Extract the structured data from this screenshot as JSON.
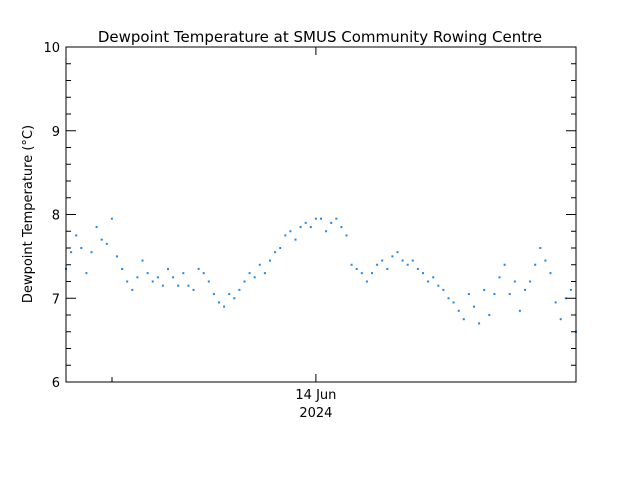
{
  "chart_data": {
    "type": "scatter",
    "title": "Dewpoint Temperature at SMUS Community Rowing Centre",
    "xlabel": "",
    "ylabel": "Dewpoint Temperature (°C)",
    "xlim": [
      0,
      1
    ],
    "ylim": [
      6,
      10
    ],
    "y_ticks": [
      {
        "label": "6",
        "value": 6
      },
      {
        "label": "7",
        "value": 7
      },
      {
        "label": "8",
        "value": 8
      },
      {
        "label": "9",
        "value": 9
      },
      {
        "label": "10",
        "value": 10
      }
    ],
    "x_ticks": [
      {
        "label": "14 Jun",
        "sublabel": "2024",
        "value": 0.49
      }
    ],
    "grid": false,
    "marker_color": "#1e88e5",
    "series": [
      {
        "name": "Dewpoint Temperature",
        "points": [
          [
            0.0,
            7.35
          ],
          [
            0.01,
            7.55
          ],
          [
            0.02,
            7.75
          ],
          [
            0.03,
            7.6
          ],
          [
            0.04,
            7.3
          ],
          [
            0.05,
            7.55
          ],
          [
            0.06,
            7.85
          ],
          [
            0.07,
            7.7
          ],
          [
            0.08,
            7.65
          ],
          [
            0.09,
            7.95
          ],
          [
            0.1,
            7.5
          ],
          [
            0.11,
            7.35
          ],
          [
            0.12,
            7.2
          ],
          [
            0.13,
            7.1
          ],
          [
            0.14,
            7.25
          ],
          [
            0.15,
            7.45
          ],
          [
            0.16,
            7.3
          ],
          [
            0.17,
            7.2
          ],
          [
            0.18,
            7.25
          ],
          [
            0.19,
            7.15
          ],
          [
            0.2,
            7.35
          ],
          [
            0.21,
            7.25
          ],
          [
            0.22,
            7.15
          ],
          [
            0.23,
            7.3
          ],
          [
            0.24,
            7.15
          ],
          [
            0.25,
            7.1
          ],
          [
            0.26,
            7.35
          ],
          [
            0.27,
            7.3
          ],
          [
            0.28,
            7.2
          ],
          [
            0.29,
            7.05
          ],
          [
            0.3,
            6.95
          ],
          [
            0.31,
            6.9
          ],
          [
            0.32,
            7.05
          ],
          [
            0.33,
            7.0
          ],
          [
            0.34,
            7.1
          ],
          [
            0.35,
            7.2
          ],
          [
            0.36,
            7.3
          ],
          [
            0.37,
            7.25
          ],
          [
            0.38,
            7.4
          ],
          [
            0.39,
            7.3
          ],
          [
            0.4,
            7.45
          ],
          [
            0.41,
            7.55
          ],
          [
            0.42,
            7.6
          ],
          [
            0.43,
            7.75
          ],
          [
            0.44,
            7.8
          ],
          [
            0.45,
            7.7
          ],
          [
            0.46,
            7.85
          ],
          [
            0.47,
            7.9
          ],
          [
            0.48,
            7.85
          ],
          [
            0.49,
            7.95
          ],
          [
            0.5,
            7.95
          ],
          [
            0.51,
            7.8
          ],
          [
            0.52,
            7.9
          ],
          [
            0.53,
            7.95
          ],
          [
            0.54,
            7.85
          ],
          [
            0.55,
            7.75
          ],
          [
            0.56,
            7.4
          ],
          [
            0.57,
            7.35
          ],
          [
            0.58,
            7.3
          ],
          [
            0.59,
            7.2
          ],
          [
            0.6,
            7.3
          ],
          [
            0.61,
            7.4
          ],
          [
            0.62,
            7.45
          ],
          [
            0.63,
            7.35
          ],
          [
            0.64,
            7.5
          ],
          [
            0.65,
            7.55
          ],
          [
            0.66,
            7.45
          ],
          [
            0.67,
            7.4
          ],
          [
            0.68,
            7.45
          ],
          [
            0.69,
            7.35
          ],
          [
            0.7,
            7.3
          ],
          [
            0.71,
            7.2
          ],
          [
            0.72,
            7.25
          ],
          [
            0.73,
            7.15
          ],
          [
            0.74,
            7.1
          ],
          [
            0.75,
            7.0
          ],
          [
            0.76,
            6.95
          ],
          [
            0.77,
            6.85
          ],
          [
            0.78,
            6.75
          ],
          [
            0.79,
            7.05
          ],
          [
            0.8,
            6.9
          ],
          [
            0.81,
            6.7
          ],
          [
            0.82,
            7.1
          ],
          [
            0.83,
            6.8
          ],
          [
            0.84,
            7.05
          ],
          [
            0.85,
            7.25
          ],
          [
            0.86,
            7.4
          ],
          [
            0.87,
            7.05
          ],
          [
            0.88,
            7.2
          ],
          [
            0.89,
            6.85
          ],
          [
            0.9,
            7.1
          ],
          [
            0.91,
            7.2
          ],
          [
            0.92,
            7.4
          ],
          [
            0.93,
            7.6
          ],
          [
            0.94,
            7.45
          ],
          [
            0.95,
            7.3
          ],
          [
            0.96,
            6.95
          ],
          [
            0.97,
            6.75
          ],
          [
            0.98,
            7.0
          ],
          [
            0.99,
            7.1
          ],
          [
            1.0,
            6.6
          ]
        ]
      }
    ]
  }
}
